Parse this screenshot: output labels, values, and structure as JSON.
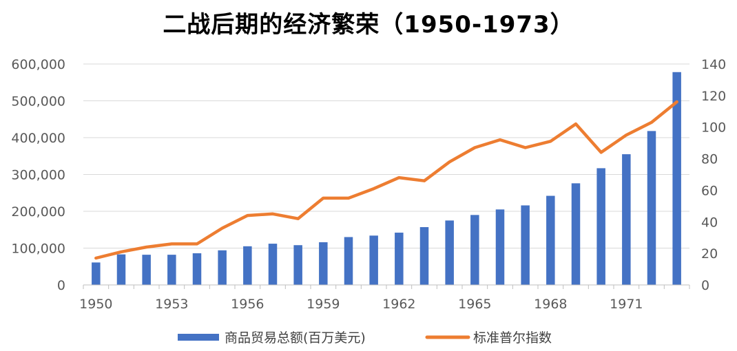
{
  "chart_data": {
    "type": "bar+line",
    "title": "二战后期的经济繁荣（1950-1973）",
    "x": [
      1950,
      1951,
      1952,
      1953,
      1954,
      1955,
      1956,
      1957,
      1958,
      1959,
      1960,
      1961,
      1962,
      1963,
      1964,
      1965,
      1966,
      1967,
      1968,
      1969,
      1970,
      1971,
      1972,
      1973
    ],
    "x_tick_labels": [
      "1950",
      "1953",
      "1956",
      "1959",
      "1962",
      "1965",
      "1968",
      "1971"
    ],
    "x_tick_values": [
      1950,
      1953,
      1956,
      1959,
      1962,
      1965,
      1968,
      1971
    ],
    "series": [
      {
        "name": "商品贸易总额(百万美元)",
        "type": "bar",
        "axis": "left",
        "color": "#4472C4",
        "values": [
          61000,
          83000,
          82000,
          82000,
          86000,
          94000,
          105000,
          112000,
          108000,
          116000,
          130000,
          134000,
          142000,
          157000,
          175000,
          190000,
          205000,
          216000,
          242000,
          276000,
          317000,
          355000,
          418000,
          578000
        ]
      },
      {
        "name": "标准普尔指数",
        "type": "line",
        "axis": "right",
        "color": "#ED7D31",
        "values": [
          17,
          21,
          24,
          26,
          26,
          36,
          44,
          45,
          42,
          55,
          55,
          61,
          68,
          66,
          78,
          87,
          92,
          87,
          91,
          102,
          84,
          95,
          103,
          116
        ]
      }
    ],
    "y_left": {
      "min": 0,
      "max": 600000,
      "tick_values": [
        0,
        100000,
        200000,
        300000,
        400000,
        500000,
        600000
      ],
      "tick_labels": [
        "0",
        "100,000",
        "200,000",
        "300,000",
        "400,000",
        "500,000",
        "600,000"
      ]
    },
    "y_right": {
      "min": 0,
      "max": 140,
      "tick_values": [
        0,
        20,
        40,
        60,
        80,
        100,
        120,
        140
      ],
      "tick_labels": [
        "0",
        "20",
        "40",
        "60",
        "80",
        "100",
        "120",
        "140"
      ]
    },
    "grid": true,
    "legend_position": "bottom",
    "grid_color": "#D9D9D9",
    "axis_color": "#BFBFBF"
  }
}
